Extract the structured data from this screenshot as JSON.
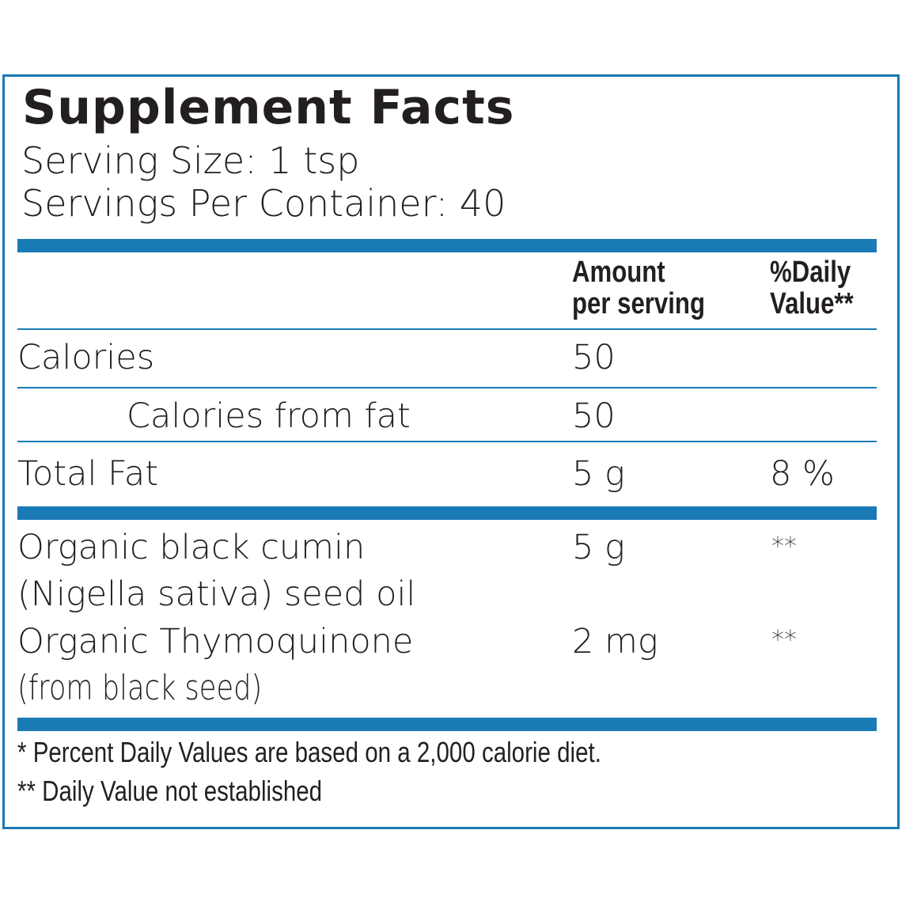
{
  "header": {
    "title": "Supplement Facts",
    "serving_size": "Serving Size: 1 tsp",
    "servings_per_container": "Servings Per Container: 40"
  },
  "table": {
    "columns": [
      [
        "Amount",
        "per serving"
      ],
      [
        "%Daily",
        "Value**"
      ]
    ],
    "rows": [
      {
        "name": [
          "Calories"
        ],
        "amount": "50"
      },
      {
        "name": [
          "Calories from fat"
        ],
        "amount": "50"
      },
      {
        "name": [
          "Total Fat"
        ],
        "amount": "5 g",
        "daily_value": "8 %"
      },
      {
        "name": [
          "Organic black cumin",
          "(Nigella sativa) seed oil"
        ],
        "amount": "5 g",
        "daily_value": "**"
      },
      {
        "name": [
          "Organic Thymoquinone",
          "(from black seed)"
        ],
        "amount": "2 mg",
        "daily_value": "**"
      }
    ]
  },
  "footnotes": [
    "* Percent Daily Values are based on a 2,000 calorie diet.",
    "** Daily Value not established"
  ]
}
